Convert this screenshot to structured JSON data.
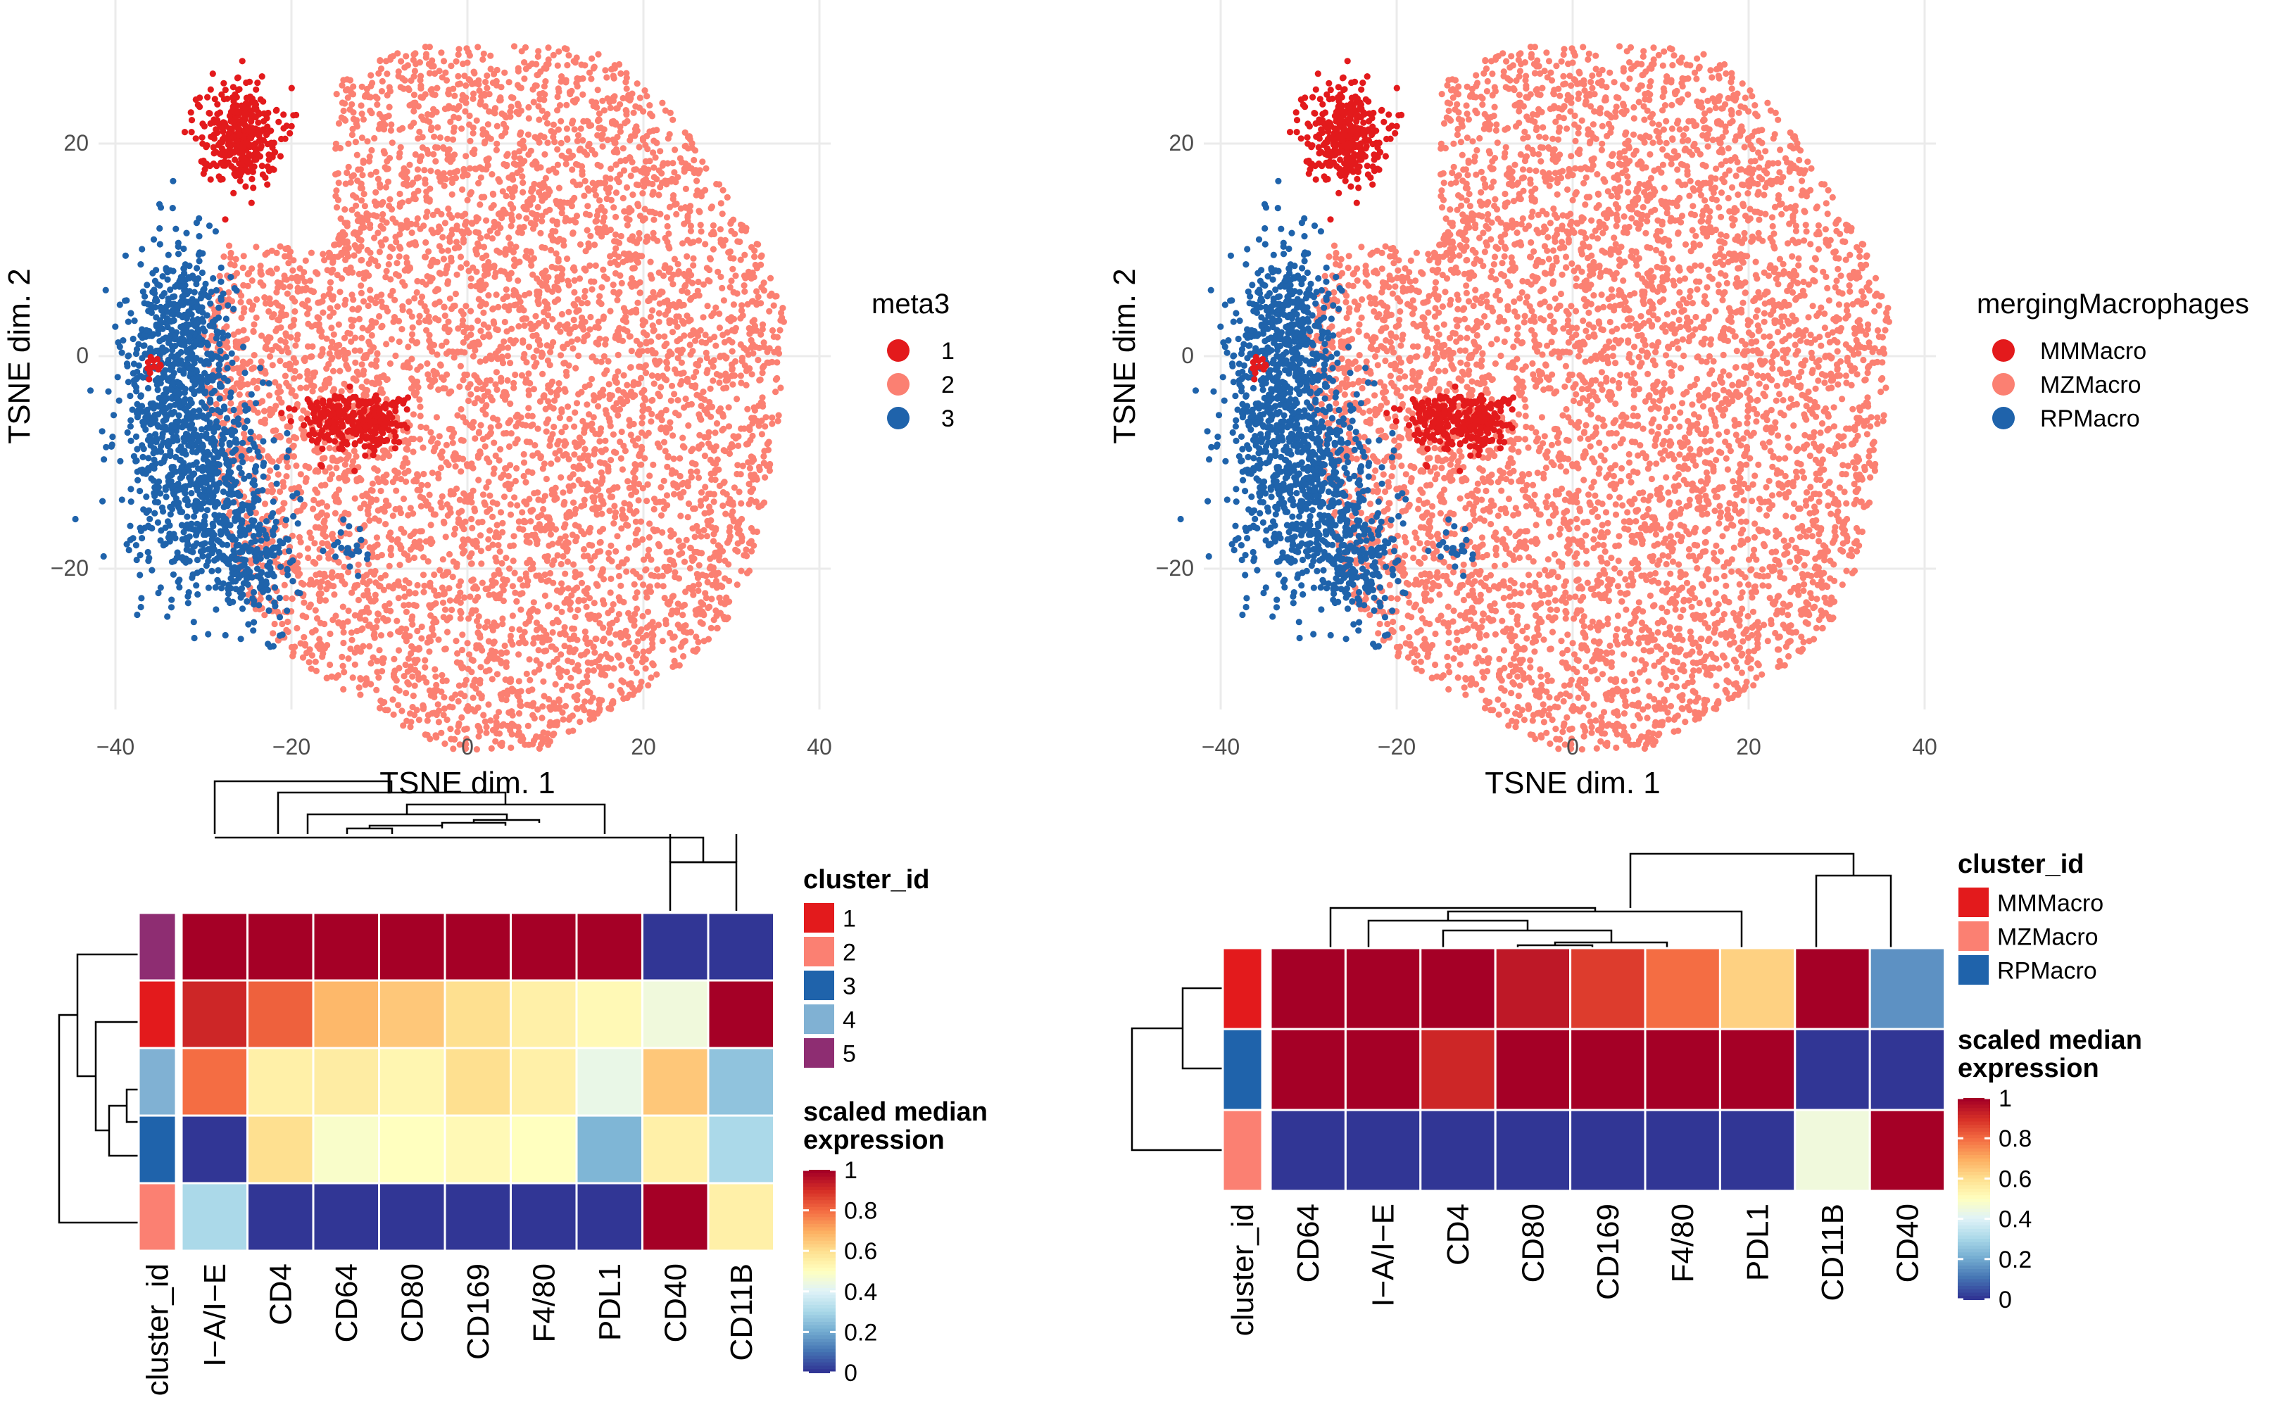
{
  "colors": {
    "c1": "#E31A1C",
    "c2": "#FB8072",
    "c3": "#1F63AB",
    "c4": "#80B1D3",
    "c5": "#8E2D72",
    "ramp": [
      "#313695",
      "#4575B4",
      "#74ADD1",
      "#ABD9E9",
      "#E0F3F8",
      "#FFFFBF",
      "#FEE090",
      "#FDAE61",
      "#F46D43",
      "#D73027",
      "#A50026"
    ]
  },
  "chart_data": [
    {
      "type": "scatter",
      "panel": "top-left",
      "xlabel": "TSNE dim. 1",
      "ylabel": "TSNE dim. 2",
      "xlim": [
        -40,
        40
      ],
      "ylim": [
        -35,
        30
      ],
      "x_ticks": [
        "−40",
        "−20",
        "0",
        "20",
        "40"
      ],
      "y_ticks": [
        "−20",
        "0",
        "20"
      ],
      "legend": {
        "title": "meta3",
        "entries": [
          {
            "label": "1",
            "color": "#E31A1C"
          },
          {
            "label": "2",
            "color": "#FB8072"
          },
          {
            "label": "3",
            "color": "#1F63AB"
          }
        ]
      }
    },
    {
      "type": "scatter",
      "panel": "top-right",
      "xlabel": "TSNE dim. 1",
      "ylabel": "TSNE dim. 2",
      "xlim": [
        -40,
        40
      ],
      "ylim": [
        -35,
        30
      ],
      "x_ticks": [
        "−40",
        "−20",
        "0",
        "20",
        "40"
      ],
      "y_ticks": [
        "−20",
        "0",
        "20"
      ],
      "legend": {
        "title": "mergingMacrophages",
        "entries": [
          {
            "label": "MMMacro",
            "color": "#E31A1C"
          },
          {
            "label": "MZMacro",
            "color": "#FB8072"
          },
          {
            "label": "RPMacro",
            "color": "#1F63AB"
          }
        ]
      }
    },
    {
      "type": "heatmap",
      "panel": "bottom-left",
      "annotation_label": "cluster_id",
      "columns": [
        "I−A/I−E",
        "CD4",
        "CD64",
        "CD80",
        "CD169",
        "F4/80",
        "PDL1",
        "CD40",
        "CD11B"
      ],
      "rows": [
        {
          "cluster": "5",
          "color": "#8E2D72",
          "values": [
            1.0,
            1.0,
            1.0,
            1.0,
            1.0,
            1.0,
            1.0,
            0.0,
            0.0
          ]
        },
        {
          "cluster": "1",
          "color": "#E31A1C",
          "values": [
            0.92,
            0.82,
            0.68,
            0.65,
            0.6,
            0.55,
            0.52,
            0.45,
            1.0
          ]
        },
        {
          "cluster": "4",
          "color": "#80B1D3",
          "values": [
            0.8,
            0.55,
            0.56,
            0.53,
            0.6,
            0.55,
            0.43,
            0.65,
            0.25
          ]
        },
        {
          "cluster": "3",
          "color": "#1F63AB",
          "values": [
            0.0,
            0.6,
            0.48,
            0.5,
            0.52,
            0.5,
            0.22,
            0.55,
            0.3
          ]
        },
        {
          "cluster": "2",
          "color": "#FB8072",
          "values": [
            0.3,
            0.0,
            0.0,
            0.0,
            0.0,
            0.0,
            0.0,
            1.0,
            0.55
          ]
        }
      ],
      "legend": {
        "title": "cluster_id",
        "entries": [
          {
            "label": "1",
            "color": "#E31A1C"
          },
          {
            "label": "2",
            "color": "#FB8072"
          },
          {
            "label": "3",
            "color": "#1F63AB"
          },
          {
            "label": "4",
            "color": "#80B1D3"
          },
          {
            "label": "5",
            "color": "#8E2D72"
          }
        ]
      },
      "colorbar": {
        "title_line1": "scaled median",
        "title_line2": "expression",
        "ticks": [
          "1",
          "0.8",
          "0.6",
          "0.4",
          "0.2",
          "0"
        ]
      }
    },
    {
      "type": "heatmap",
      "panel": "bottom-right",
      "annotation_label": "cluster_id",
      "columns": [
        "CD64",
        "I−A/I−E",
        "CD4",
        "CD80",
        "CD169",
        "F4/80",
        "PDL1",
        "CD11B",
        "CD40"
      ],
      "rows": [
        {
          "cluster": "MMMacro",
          "color": "#E31A1C",
          "values": [
            1.0,
            1.0,
            1.0,
            0.95,
            0.88,
            0.8,
            0.63,
            1.0,
            0.15
          ]
        },
        {
          "cluster": "RPMacro",
          "color": "#1F63AB",
          "values": [
            1.0,
            1.0,
            0.92,
            1.0,
            1.0,
            1.0,
            1.0,
            0.0,
            0.0
          ]
        },
        {
          "cluster": "MZMacro",
          "color": "#FB8072",
          "values": [
            0.0,
            0.0,
            0.0,
            0.0,
            0.0,
            0.0,
            0.0,
            0.45,
            1.0
          ]
        }
      ],
      "legend": {
        "title": "cluster_id",
        "entries": [
          {
            "label": "MMMacro",
            "color": "#E31A1C"
          },
          {
            "label": "MZMacro",
            "color": "#FB8072"
          },
          {
            "label": "RPMacro",
            "color": "#1F63AB"
          }
        ]
      },
      "colorbar": {
        "title_line1": "scaled median",
        "title_line2": "expression",
        "ticks": [
          "1",
          "0.8",
          "0.6",
          "0.4",
          "0.2",
          "0"
        ]
      }
    }
  ]
}
